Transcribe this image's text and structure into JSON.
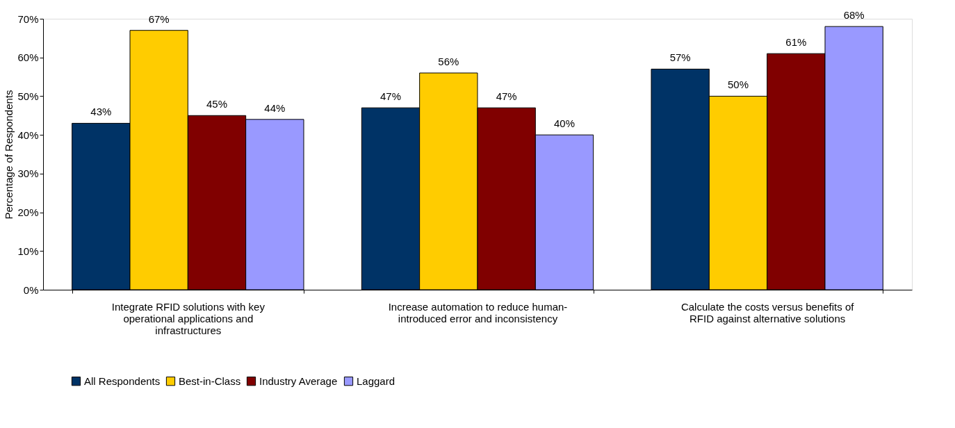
{
  "chart_data": {
    "type": "bar",
    "ylabel": "Percentage of Respondents",
    "categories": [
      "Integrate RFID solutions with key operational applications and infrastructures",
      "Increase automation to reduce human-introduced error and inconsistency",
      "Calculate the costs versus benefits of RFID against alternative solutions"
    ],
    "series": [
      {
        "name": "All Respondents",
        "color": "#003366",
        "values": [
          43,
          47,
          57
        ],
        "value_labels": [
          "43%",
          "47%",
          "57%"
        ]
      },
      {
        "name": "Best-in-Class",
        "color": "#ffcc00",
        "values": [
          67,
          56,
          50
        ],
        "value_labels": [
          "67%",
          "56%",
          "50%"
        ]
      },
      {
        "name": "Industry Average",
        "color": "#800000",
        "values": [
          45,
          47,
          61
        ],
        "value_labels": [
          "45%",
          "47%",
          "61%"
        ]
      },
      {
        "name": "Laggard",
        "color": "#9999ff",
        "values": [
          44,
          40,
          68
        ],
        "value_labels": [
          "44%",
          "40%",
          "68%"
        ]
      }
    ],
    "ylim": [
      0,
      70
    ],
    "yticks": [
      {
        "value": 0,
        "label": "0%"
      },
      {
        "value": 10,
        "label": "10%"
      },
      {
        "value": 20,
        "label": "20%"
      },
      {
        "value": 30,
        "label": "30%"
      },
      {
        "value": 40,
        "label": "40%"
      },
      {
        "value": 50,
        "label": "50%"
      },
      {
        "value": 60,
        "label": "60%"
      },
      {
        "value": 70,
        "label": "70%"
      }
    ],
    "grid": false,
    "legend": "bottom"
  }
}
